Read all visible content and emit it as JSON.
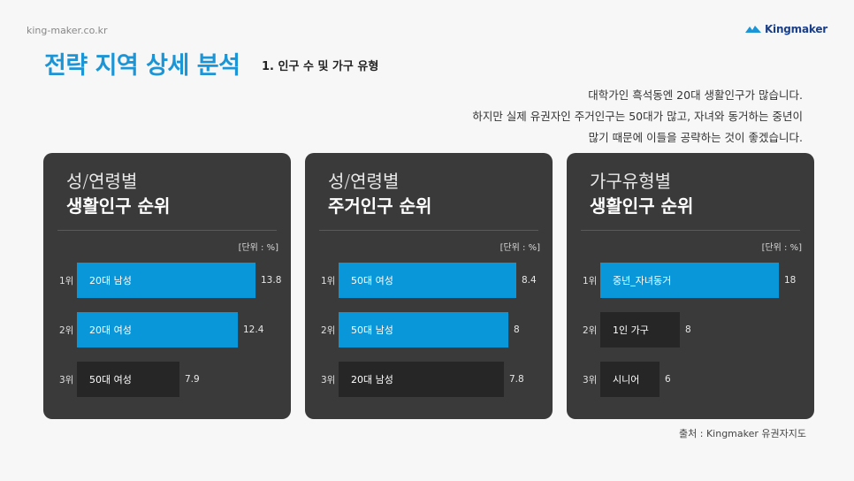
{
  "header": {
    "site": "king-maker.co.kr",
    "logo_text": "Kingmaker",
    "title": "전략 지역 상세 분석",
    "subtitle": "1. 인구 수 및 가구 유형"
  },
  "description": [
    "대학가인 흑석동엔 20대 생활인구가 많습니다.",
    "하지만  실제 유권자인 주거인구는 50대가 많고, 자녀와 동거하는 중년이",
    "많기 때문에 이들을 공략하는 것이 좋겠습니다."
  ],
  "colors": {
    "accent": "#1c95d6",
    "bar_blue": "#0a97d9",
    "bar_dark": "#262626",
    "panel": "#3a3a3a"
  },
  "chart_data": [
    {
      "type": "bar",
      "title_line1": "성/연령별",
      "title_line2": "생활인구 순위",
      "unit": "[단위 : %]",
      "xlim": [
        0,
        16.5
      ],
      "ranks": [
        "1위",
        "2위",
        "3위"
      ],
      "categories": [
        "20대 남성",
        "20대 여성",
        "50대 여성"
      ],
      "values": [
        13.8,
        12.4,
        7.9
      ],
      "value_labels": [
        "13.8",
        "12.4",
        "7.9"
      ],
      "highlight": [
        true,
        true,
        false
      ]
    },
    {
      "type": "bar",
      "title_line1": "성/연령별",
      "title_line2": "주거인구 순위",
      "unit": "[단위 : %]",
      "xlim": [
        0,
        10.1
      ],
      "ranks": [
        "1위",
        "2위",
        "3위"
      ],
      "categories": [
        "50대 여성",
        "50대 남성",
        "20대 남성"
      ],
      "values": [
        8.4,
        8,
        7.8
      ],
      "value_labels": [
        "8.4",
        "8",
        "7.8"
      ],
      "highlight": [
        true,
        true,
        false
      ]
    },
    {
      "type": "bar",
      "title_line1": "가구유형별",
      "title_line2": "생활인구 순위",
      "unit": "[단위 : %]",
      "xlim": [
        0,
        21.6
      ],
      "ranks": [
        "1위",
        "2위",
        "3위"
      ],
      "categories": [
        "중년_자녀동거",
        "1인 가구",
        "시니어"
      ],
      "values": [
        18,
        8,
        6
      ],
      "value_labels": [
        "18",
        "8",
        "6"
      ],
      "highlight": [
        true,
        false,
        false
      ]
    }
  ],
  "source": "출처 : Kingmaker 유권자지도"
}
